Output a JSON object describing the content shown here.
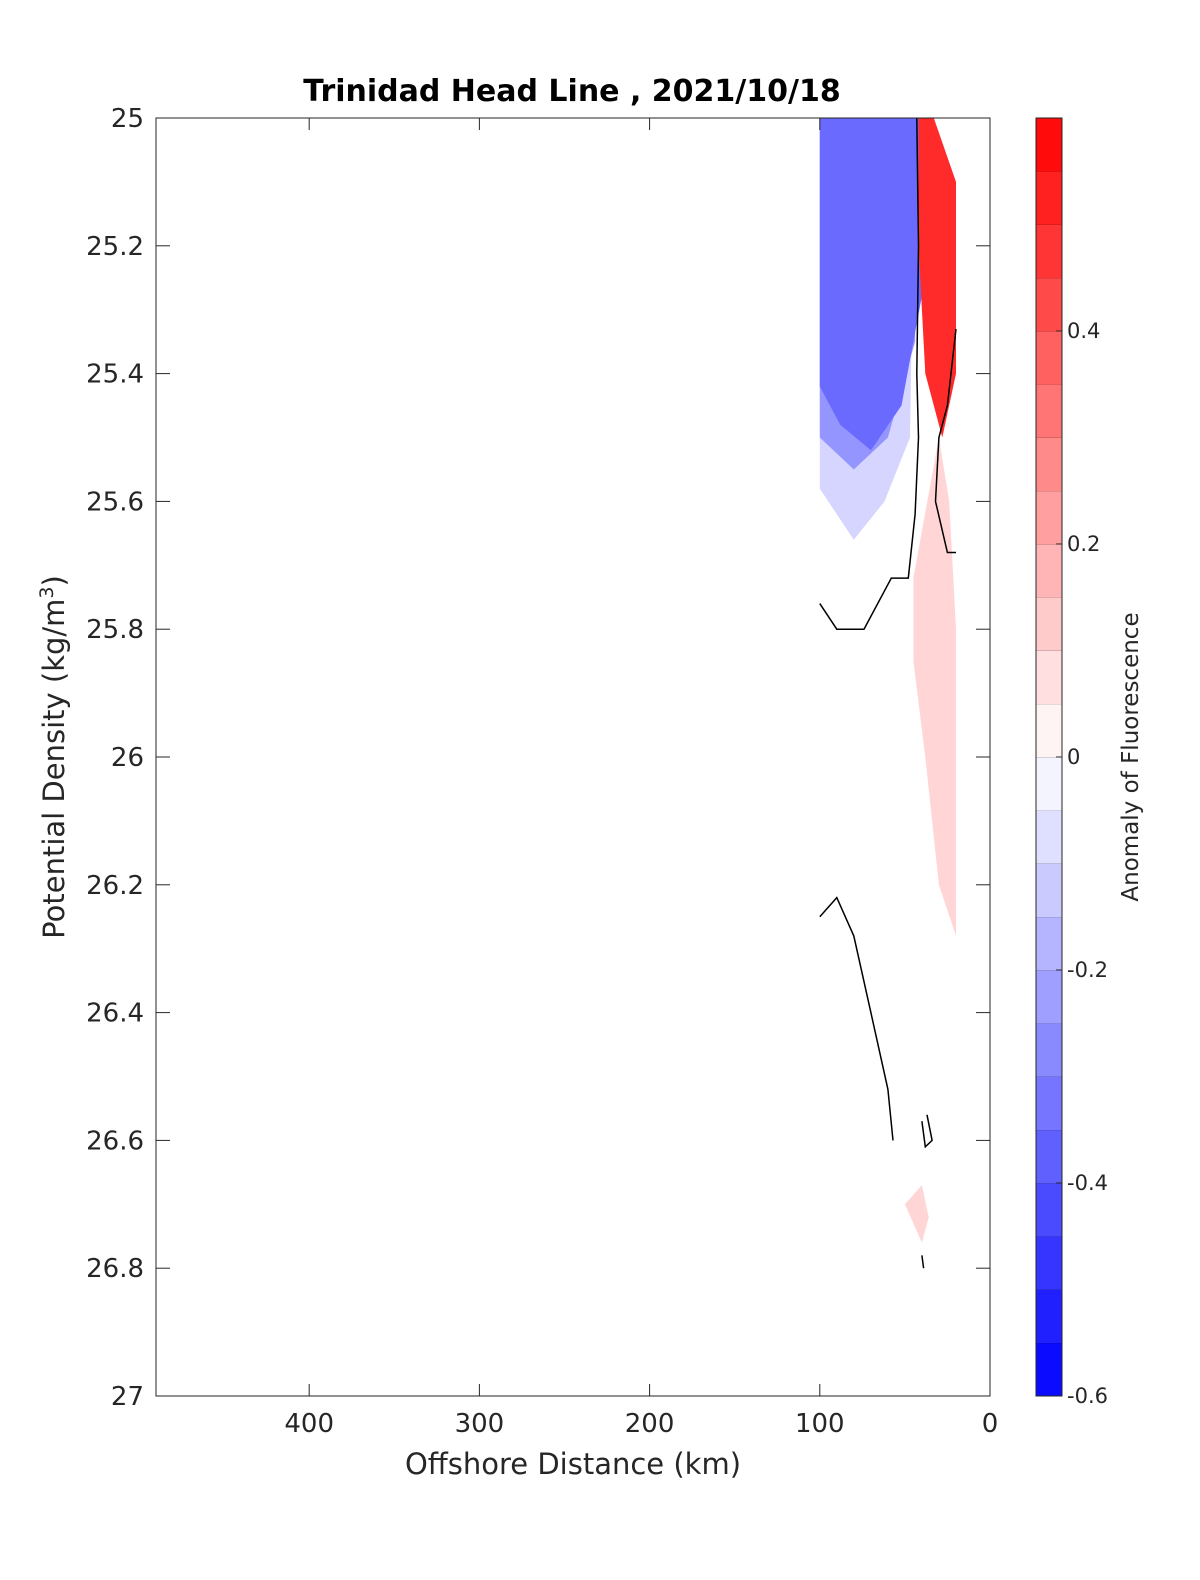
{
  "chart_data": {
    "type": "heatmap",
    "title": "Trinidad Head Line , 2021/10/18",
    "xlabel": "Offshore Distance (km)",
    "ylabel": "Potential Density (kg/m",
    "ylabel_sup": "3",
    "ylabel_close": ")",
    "xlim": [
      490,
      0
    ],
    "ylim": [
      25,
      27
    ],
    "x_reversed": true,
    "y_reversed": true,
    "x_ticks": [
      "400",
      "300",
      "200",
      "100",
      "0"
    ],
    "x_tick_values": [
      400,
      300,
      200,
      100,
      0
    ],
    "y_ticks": [
      "25",
      "25.2",
      "25.4",
      "25.6",
      "25.8",
      "26",
      "26.2",
      "26.4",
      "26.6",
      "26.8",
      "27"
    ],
    "y_tick_values": [
      25,
      25.2,
      25.4,
      25.6,
      25.8,
      26,
      26.2,
      26.4,
      26.6,
      26.8,
      27
    ],
    "grid": false,
    "colorbar": {
      "label": "Anomaly of Fluorescence",
      "range": [
        -0.6,
        0.6
      ],
      "levels": 24,
      "ticks": [
        "-0.6",
        "-0.4",
        "-0.2",
        "0",
        "0.2",
        "0.4"
      ],
      "tick_values": [
        -0.6,
        -0.4,
        -0.2,
        0,
        0.2,
        0.4
      ],
      "colors": [
        "#0000ff",
        "#ffffff",
        "#ff0000"
      ]
    },
    "regions": [
      {
        "name": "negative-anomaly-core",
        "value": -0.35,
        "polygon": [
          [
            100,
            25.0
          ],
          [
            35,
            25.0
          ],
          [
            38,
            25.25
          ],
          [
            52,
            25.45
          ],
          [
            70,
            25.52
          ],
          [
            88,
            25.48
          ],
          [
            100,
            25.42
          ]
        ]
      },
      {
        "name": "negative-anomaly-mid",
        "value": -0.25,
        "polygon": [
          [
            100,
            25.0
          ],
          [
            42,
            25.0
          ],
          [
            44,
            25.35
          ],
          [
            60,
            25.5
          ],
          [
            80,
            25.55
          ],
          [
            100,
            25.5
          ]
        ]
      },
      {
        "name": "negative-anomaly-outer",
        "value": -0.1,
        "polygon": [
          [
            100,
            25.0
          ],
          [
            44,
            25.0
          ],
          [
            47,
            25.5
          ],
          [
            62,
            25.6
          ],
          [
            80,
            25.66
          ],
          [
            100,
            25.58
          ]
        ]
      },
      {
        "name": "positive-anomaly-surface",
        "value": 0.5,
        "polygon": [
          [
            42,
            25.0
          ],
          [
            33,
            25.0
          ],
          [
            20,
            25.1
          ],
          [
            20,
            25.4
          ],
          [
            28,
            25.5
          ],
          [
            38,
            25.4
          ],
          [
            42,
            25.2
          ]
        ]
      },
      {
        "name": "positive-anomaly-column",
        "value": 0.1,
        "polygon": [
          [
            30,
            25.5
          ],
          [
            45,
            25.72
          ],
          [
            45,
            25.85
          ],
          [
            38,
            26.0
          ],
          [
            30,
            26.2
          ],
          [
            20,
            26.28
          ],
          [
            20,
            25.8
          ],
          [
            24,
            25.6
          ]
        ]
      },
      {
        "name": "positive-anomaly-patch",
        "value": 0.1,
        "polygon": [
          [
            50,
            26.7
          ],
          [
            40,
            26.67
          ],
          [
            36,
            26.72
          ],
          [
            40,
            26.76
          ]
        ]
      }
    ],
    "zero_contours": [
      [
        [
          43,
          25.0
        ],
        [
          42,
          25.2
        ],
        [
          43,
          25.4
        ],
        [
          42,
          25.5
        ],
        [
          44,
          25.62
        ],
        [
          48,
          25.72
        ],
        [
          58,
          25.72
        ],
        [
          74,
          25.8
        ],
        [
          90,
          25.8
        ],
        [
          100,
          25.76
        ]
      ],
      [
        [
          20,
          25.33
        ],
        [
          25,
          25.45
        ],
        [
          30,
          25.5
        ],
        [
          32,
          25.6
        ],
        [
          25,
          25.68
        ],
        [
          20,
          25.68
        ]
      ],
      [
        [
          100,
          26.25
        ],
        [
          90,
          26.22
        ],
        [
          80,
          26.28
        ],
        [
          70,
          26.4
        ],
        [
          60,
          26.52
        ],
        [
          57,
          26.6
        ]
      ],
      [
        [
          37,
          26.56
        ],
        [
          34,
          26.6
        ],
        [
          38,
          26.61
        ],
        [
          40,
          26.57
        ]
      ],
      [
        [
          39,
          26.8
        ],
        [
          40,
          26.78
        ]
      ]
    ]
  }
}
